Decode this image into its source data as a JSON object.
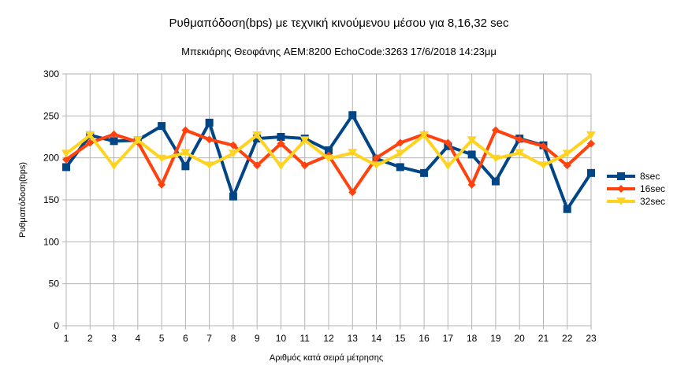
{
  "chart_data": {
    "type": "line",
    "title": "Ρυθμαπόδοση(bps) με τεχνική κινούμενου μέσου για 8,16,32 sec",
    "subtitle": "Μπεκιάρης Θεοφάνης AEM:8200 EchoCode:3263 17/6/2018 14:23μμ",
    "xlabel": "Αριθμός κατά σειρά μέτρησης",
    "ylabel": "Ρυθμαπόδοση(bps)",
    "ylim": [
      0,
      300
    ],
    "yticks": [
      0,
      50,
      100,
      150,
      200,
      250,
      300
    ],
    "grid": true,
    "legend": "right",
    "x": [
      1,
      2,
      3,
      4,
      5,
      6,
      7,
      8,
      9,
      10,
      11,
      12,
      13,
      14,
      15,
      16,
      17,
      18,
      19,
      20,
      21,
      22,
      23
    ],
    "series": [
      {
        "name": "8sec",
        "color": "#004586",
        "marker": "square",
        "values": [
          189,
          227,
          220,
          221,
          238,
          190,
          242,
          154,
          223,
          225,
          223,
          209,
          251,
          199,
          189,
          182,
          214,
          204,
          172,
          223,
          215,
          139,
          182
        ]
      },
      {
        "name": "16sec",
        "color": "#ff420e",
        "marker": "diamond",
        "values": [
          198,
          218,
          228,
          219,
          168,
          233,
          222,
          215,
          191,
          217,
          191,
          203,
          159,
          200,
          218,
          228,
          218,
          168,
          233,
          222,
          214,
          191,
          217
        ]
      },
      {
        "name": "32sec",
        "color": "#ffd320",
        "marker": "triangle-down",
        "values": [
          205,
          227,
          190,
          221,
          199,
          206,
          191,
          205,
          227,
          190,
          221,
          199,
          206,
          191,
          205,
          227,
          190,
          221,
          199,
          206,
          191,
          205,
          227
        ]
      }
    ]
  }
}
